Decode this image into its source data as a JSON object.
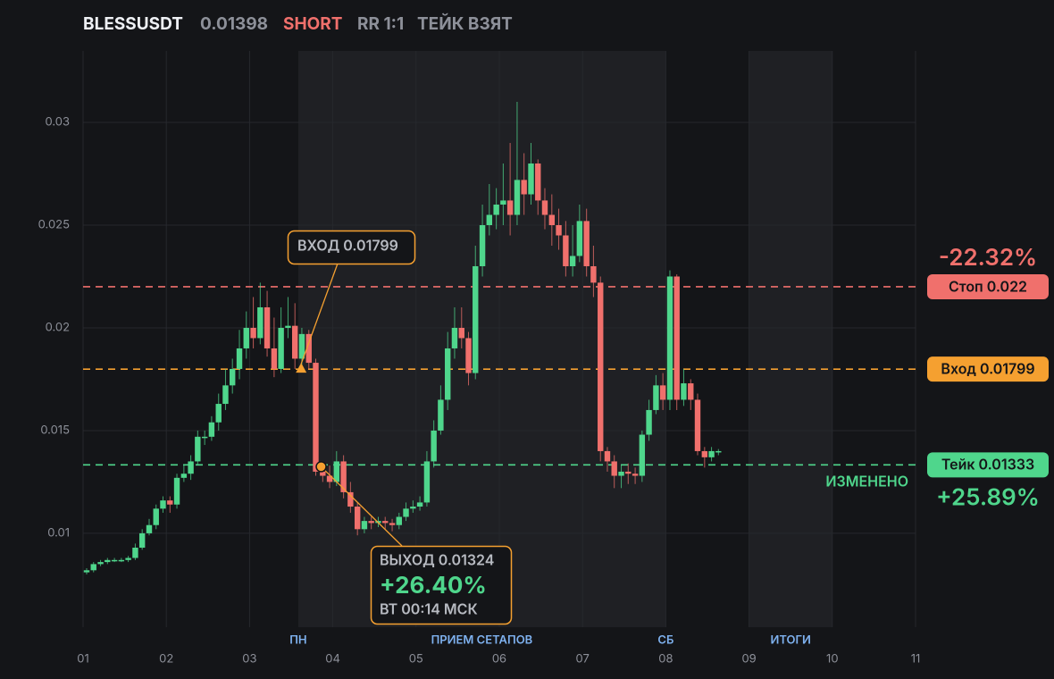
{
  "chart_data": {
    "type": "candlestick",
    "symbol": "BLESSUSDT",
    "price": 0.01398,
    "side": "SHORT",
    "rr": "RR 1:1",
    "status": "ТЕЙК ВЗЯТ",
    "up_color": "#4fd68c",
    "down_color": "#f0706c",
    "grid": true,
    "xlim": [
      1,
      11
    ],
    "xticks": [
      {
        "value": 1,
        "label": "01"
      },
      {
        "value": 2,
        "label": "02"
      },
      {
        "value": 3,
        "label": "03"
      },
      {
        "value": 4,
        "label": "04"
      },
      {
        "value": 5,
        "label": "05"
      },
      {
        "value": 6,
        "label": "06"
      },
      {
        "value": 7,
        "label": "07"
      },
      {
        "value": 8,
        "label": "08"
      },
      {
        "value": 9,
        "label": "09"
      },
      {
        "value": 10,
        "label": "10"
      },
      {
        "value": 11,
        "label": "11"
      }
    ],
    "ylim": [
      0.00543,
      0.03348
    ],
    "yticks": [
      0.01,
      0.015,
      0.02,
      0.025,
      0.03
    ],
    "shaded": [
      [
        3.585,
        8.0
      ],
      [
        9.0,
        10.0
      ]
    ],
    "sessions": [
      {
        "label": "ПН",
        "x": 3.585
      },
      {
        "label": "ПРИЕМ СЕТАПОВ",
        "x": 5.79
      },
      {
        "label": "СБ",
        "x": 8.0
      },
      {
        "label": "ИТОГИ",
        "x": 9.5
      }
    ],
    "levels": [
      {
        "value": 0.022,
        "label": "Стоп 0.022",
        "change": "-22.32%",
        "color": "#f0706c"
      },
      {
        "value": 0.01799,
        "label": "Вход 0.01799",
        "color": "#f5a030"
      },
      {
        "value": 0.01333,
        "label": "Тейк 0.01333",
        "change": "+25.89%",
        "note": "ИЗМЕНЕНО",
        "color": "#4fd68c"
      }
    ],
    "entry": {
      "x": 3.62,
      "y": 0.01799,
      "label": "ВХОД 0.01799"
    },
    "exit": {
      "x": 3.86,
      "y": 0.01324,
      "label": "ВЫХОД 0.01324",
      "change": "+26.40%",
      "time": "ВТ 00:14 МСК"
    },
    "x": [
      1.043,
      1.126,
      1.21,
      1.293,
      1.377,
      1.46,
      1.543,
      1.627,
      1.71,
      1.794,
      1.877,
      1.96,
      2.044,
      2.127,
      2.211,
      2.294,
      2.377,
      2.461,
      2.544,
      2.628,
      2.711,
      2.794,
      2.878,
      2.961,
      3.045,
      3.128,
      3.211,
      3.295,
      3.378,
      3.462,
      3.545,
      3.628,
      3.712,
      3.795,
      3.879,
      3.962,
      4.045,
      4.129,
      4.212,
      4.296,
      4.379,
      4.462,
      4.546,
      4.629,
      4.713,
      4.796,
      4.879,
      4.963,
      5.046,
      5.13,
      5.213,
      5.296,
      5.38,
      5.463,
      5.547,
      5.63,
      5.713,
      5.797,
      5.88,
      5.964,
      6.047,
      6.13,
      6.214,
      6.297,
      6.381,
      6.464,
      6.547,
      6.631,
      6.714,
      6.798,
      6.881,
      6.964,
      7.048,
      7.131,
      7.215,
      7.298,
      7.381,
      7.465,
      7.548,
      7.632,
      7.715,
      7.798,
      7.882,
      7.965,
      8.049,
      8.132,
      8.215,
      8.299,
      8.382,
      8.466,
      8.549,
      8.632
    ],
    "open": [
      0.0081,
      0.0082,
      0.0085,
      0.0086,
      0.0087,
      0.0087,
      0.0087,
      0.0088,
      0.0093,
      0.01,
      0.0104,
      0.0112,
      0.0116,
      0.0114,
      0.0127,
      0.0129,
      0.0135,
      0.0147,
      0.0147,
      0.0154,
      0.0163,
      0.0172,
      0.018,
      0.019,
      0.02,
      0.0195,
      0.021,
      0.019,
      0.018,
      0.02,
      0.0201,
      0.0185,
      0.0197,
      0.0183,
      0.013,
      0.0128,
      0.0125,
      0.0135,
      0.012,
      0.0113,
      0.0102,
      0.0106,
      0.0105,
      0.0106,
      0.0105,
      0.0104,
      0.0108,
      0.0112,
      0.0113,
      0.0115,
      0.0135,
      0.015,
      0.0165,
      0.019,
      0.02,
      0.0195,
      0.0178,
      0.023,
      0.025,
      0.0255,
      0.026,
      0.0262,
      0.0255,
      0.0272,
      0.0265,
      0.028,
      0.0262,
      0.0255,
      0.025,
      0.0245,
      0.023,
      0.0235,
      0.0252,
      0.023,
      0.0222,
      0.014,
      0.0135,
      0.0128,
      0.013,
      0.0129,
      0.0128,
      0.0148,
      0.016,
      0.0172,
      0.0165,
      0.0225,
      0.0165,
      0.0173,
      0.0165,
      0.014,
      0.0137,
      0.014
    ],
    "high": [
      0.0083,
      0.0086,
      0.0087,
      0.0088,
      0.0088,
      0.0088,
      0.0089,
      0.0095,
      0.0102,
      0.0107,
      0.0114,
      0.0118,
      0.0118,
      0.0129,
      0.0133,
      0.0138,
      0.015,
      0.015,
      0.0157,
      0.0168,
      0.018,
      0.0185,
      0.0199,
      0.0208,
      0.0215,
      0.0222,
      0.0218,
      0.0205,
      0.021,
      0.0215,
      0.0212,
      0.02,
      0.0199,
      0.0185,
      0.0135,
      0.0133,
      0.014,
      0.0138,
      0.0125,
      0.0115,
      0.0108,
      0.0108,
      0.0108,
      0.0108,
      0.0107,
      0.011,
      0.0115,
      0.0116,
      0.0118,
      0.014,
      0.0155,
      0.0172,
      0.0198,
      0.021,
      0.021,
      0.0198,
      0.024,
      0.026,
      0.027,
      0.0268,
      0.028,
      0.029,
      0.031,
      0.0285,
      0.029,
      0.0282,
      0.0268,
      0.0265,
      0.0258,
      0.0252,
      0.025,
      0.026,
      0.0258,
      0.024,
      0.0225,
      0.0142,
      0.0138,
      0.0133,
      0.0134,
      0.0132,
      0.015,
      0.0165,
      0.0177,
      0.0178,
      0.0228,
      0.0226,
      0.018,
      0.0175,
      0.0168,
      0.0142,
      0.0142,
      0.0141
    ],
    "low": [
      0.008,
      0.0081,
      0.0084,
      0.0085,
      0.0086,
      0.0086,
      0.0086,
      0.0087,
      0.0092,
      0.0099,
      0.0102,
      0.011,
      0.011,
      0.0112,
      0.0125,
      0.0126,
      0.0133,
      0.0143,
      0.0145,
      0.015,
      0.016,
      0.0168,
      0.0175,
      0.0185,
      0.019,
      0.0192,
      0.0186,
      0.0176,
      0.0178,
      0.0195,
      0.018,
      0.0182,
      0.018,
      0.0128,
      0.0125,
      0.0122,
      0.0123,
      0.0117,
      0.011,
      0.0099,
      0.01,
      0.0102,
      0.0103,
      0.0102,
      0.0101,
      0.0102,
      0.0106,
      0.011,
      0.0111,
      0.0113,
      0.0132,
      0.0148,
      0.016,
      0.0185,
      0.019,
      0.0172,
      0.0175,
      0.0225,
      0.0245,
      0.0248,
      0.025,
      0.0245,
      0.025,
      0.0255,
      0.026,
      0.0255,
      0.0248,
      0.024,
      0.0238,
      0.0225,
      0.0225,
      0.0232,
      0.0225,
      0.0215,
      0.0135,
      0.013,
      0.0122,
      0.0122,
      0.0124,
      0.0124,
      0.0125,
      0.0145,
      0.0158,
      0.016,
      0.016,
      0.016,
      0.0162,
      0.016,
      0.0138,
      0.0132,
      0.0135,
      0.0138
    ],
    "close": [
      0.0082,
      0.0085,
      0.0086,
      0.0087,
      0.0087,
      0.0087,
      0.0088,
      0.0093,
      0.01,
      0.0104,
      0.0112,
      0.0116,
      0.0114,
      0.0127,
      0.0129,
      0.0135,
      0.0147,
      0.0147,
      0.0154,
      0.0163,
      0.0172,
      0.018,
      0.019,
      0.02,
      0.0195,
      0.021,
      0.019,
      0.018,
      0.02,
      0.0201,
      0.0185,
      0.0197,
      0.0183,
      0.013,
      0.0128,
      0.0125,
      0.0135,
      0.012,
      0.0113,
      0.0102,
      0.0106,
      0.0105,
      0.0106,
      0.0105,
      0.0104,
      0.0108,
      0.0112,
      0.0113,
      0.0115,
      0.0135,
      0.015,
      0.0165,
      0.019,
      0.02,
      0.0195,
      0.0178,
      0.023,
      0.025,
      0.0255,
      0.026,
      0.0262,
      0.0255,
      0.0272,
      0.0265,
      0.028,
      0.0262,
      0.0255,
      0.025,
      0.0245,
      0.023,
      0.0235,
      0.0252,
      0.023,
      0.0222,
      0.014,
      0.0135,
      0.0128,
      0.013,
      0.0129,
      0.0128,
      0.0148,
      0.016,
      0.0172,
      0.0165,
      0.0225,
      0.0165,
      0.0173,
      0.0165,
      0.014,
      0.0137,
      0.014,
      0.014
    ]
  }
}
